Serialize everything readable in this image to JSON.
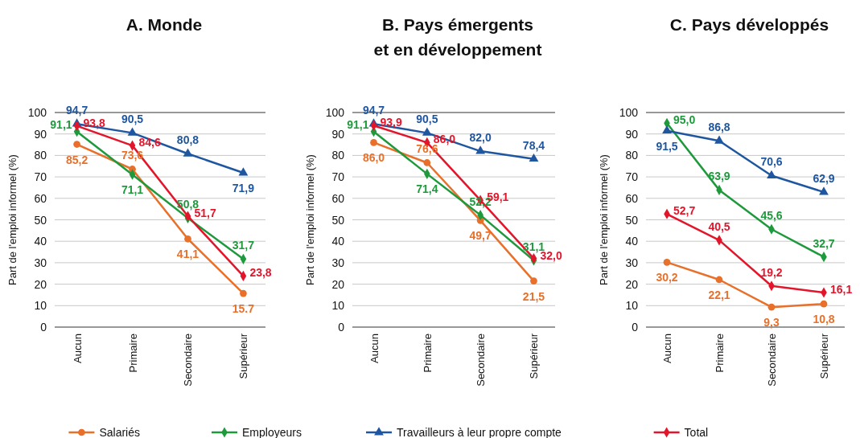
{
  "chart_data": [
    {
      "type": "line",
      "title": "A. Monde",
      "ylabel": "Part de l'emploi informel (%)",
      "categories": [
        "Aucun",
        "Primaire",
        "Secondaire",
        "Supérieur"
      ],
      "ylim": [
        0,
        100
      ],
      "yticks": [
        0,
        10,
        20,
        30,
        40,
        50,
        60,
        70,
        80,
        90,
        100
      ],
      "grid": "y",
      "legend": "bottom",
      "series": [
        {
          "name": "Salariés",
          "color": "#e8702a",
          "marker": "circle",
          "values": [
            85.2,
            73.6,
            41.1,
            15.7
          ],
          "value_labels": [
            "85,2",
            "73,6",
            "41,1",
            "15.7"
          ]
        },
        {
          "name": "Employeurs",
          "color": "#1e9a3c",
          "marker": "diamond",
          "values": [
            91.1,
            71.1,
            50.8,
            31.7
          ],
          "value_labels": [
            "91,1",
            "71,1",
            "50,8",
            "31,7"
          ]
        },
        {
          "name": "Travailleurs à leur propre compte",
          "color": "#1f56a0",
          "marker": "triangle",
          "values": [
            94.7,
            90.5,
            80.8,
            71.9
          ],
          "value_labels": [
            "94,7",
            "90,5",
            "80,8",
            "71,9"
          ]
        },
        {
          "name": "Total",
          "color": "#e3152b",
          "marker": "diamond",
          "values": [
            93.8,
            84.6,
            51.7,
            23.8
          ],
          "value_labels": [
            "93,8",
            "84,6",
            "51,7",
            "23,8"
          ]
        }
      ]
    },
    {
      "type": "line",
      "title": "B. Pays émergents\net en développement",
      "ylabel": "Part de l'emploi informel (%)",
      "categories": [
        "Aucun",
        "Primaire",
        "Secondaire",
        "Supérieur"
      ],
      "ylim": [
        0,
        100
      ],
      "yticks": [
        0,
        10,
        20,
        30,
        40,
        50,
        60,
        70,
        80,
        90,
        100
      ],
      "grid": "y",
      "legend": false,
      "series": [
        {
          "color": "#e8702a",
          "marker": "circle",
          "values": [
            86.0,
            76.6,
            49.7,
            21.5
          ],
          "value_labels": [
            "86,0",
            "76,6",
            "49,7",
            "21,5"
          ]
        },
        {
          "color": "#1e9a3c",
          "marker": "diamond",
          "values": [
            91.1,
            71.4,
            52.2,
            31.1
          ],
          "value_labels": [
            "91,1",
            "71,4",
            "52,2",
            "31,1"
          ]
        },
        {
          "color": "#1f56a0",
          "marker": "triangle",
          "values": [
            94.7,
            90.5,
            82.0,
            78.4
          ],
          "value_labels": [
            "94,7",
            "90,5",
            "82,0",
            "78,4"
          ]
        },
        {
          "color": "#e3152b",
          "marker": "diamond",
          "values": [
            93.9,
            86.0,
            59.1,
            32.0
          ],
          "value_labels": [
            "93,9",
            "86,0",
            "59,1",
            "32,0"
          ]
        }
      ]
    },
    {
      "type": "line",
      "title": "C. Pays développés",
      "ylabel": "Part de l'emploi informel (%)",
      "categories": [
        "Aucun",
        "Primaire",
        "Secondaire",
        "Supérieur"
      ],
      "ylim": [
        0,
        100
      ],
      "yticks": [
        0,
        10,
        20,
        30,
        40,
        50,
        60,
        70,
        80,
        90,
        100
      ],
      "grid": "y",
      "legend": false,
      "series": [
        {
          "color": "#e8702a",
          "marker": "circle",
          "values": [
            30.2,
            22.1,
            9.3,
            10.8
          ],
          "value_labels": [
            "30,2",
            "22,1",
            "9,3",
            "10,8"
          ]
        },
        {
          "color": "#1e9a3c",
          "marker": "diamond",
          "values": [
            95.0,
            63.9,
            45.6,
            32.7
          ],
          "value_labels": [
            "95,0",
            "63,9",
            "45,6",
            "32,7"
          ]
        },
        {
          "color": "#1f56a0",
          "marker": "triangle",
          "values": [
            91.5,
            86.8,
            70.6,
            62.9
          ],
          "value_labels": [
            "91,5",
            "86,8",
            "70,6",
            "62,9"
          ]
        },
        {
          "color": "#e3152b",
          "marker": "diamond",
          "values": [
            52.7,
            40.5,
            19.2,
            16.1
          ],
          "value_labels": [
            "52,7",
            "40,5",
            "19,2",
            "16,1"
          ]
        }
      ]
    }
  ]
}
